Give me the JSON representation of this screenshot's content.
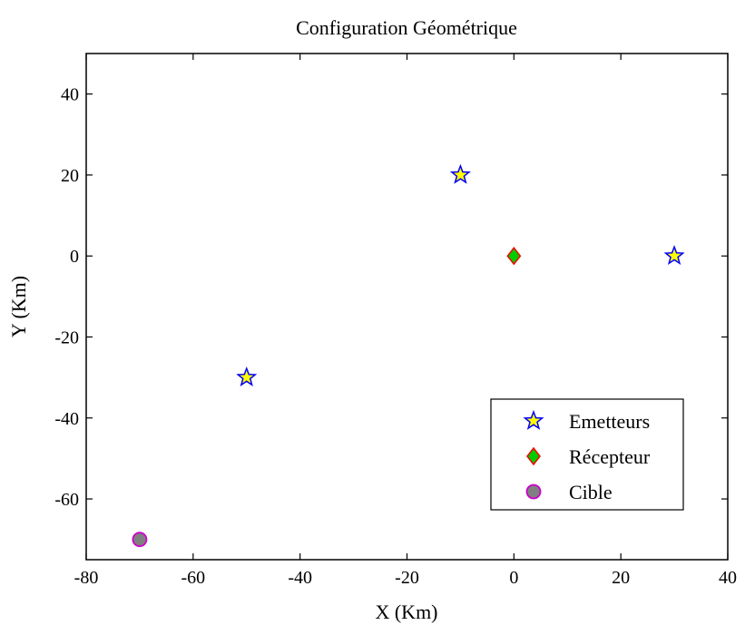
{
  "chart_data": {
    "type": "scatter",
    "title": "Configuration Géométrique",
    "xlabel": "X (Km)",
    "ylabel": "Y (Km)",
    "xlim": [
      -80,
      40
    ],
    "ylim": [
      -75,
      50
    ],
    "xticks": [
      -80,
      -60,
      -40,
      -20,
      0,
      20,
      40
    ],
    "yticks": [
      -60,
      -40,
      -20,
      0,
      20,
      40
    ],
    "grid": false,
    "legend_position": "bottom-right",
    "series": [
      {
        "name": "Emetteurs",
        "marker": "star",
        "color": "#0000ff",
        "fill": "#ffff00",
        "points": [
          [
            -50,
            -30
          ],
          [
            -10,
            20
          ],
          [
            30,
            0
          ]
        ]
      },
      {
        "name": "Récepteur",
        "marker": "diamond",
        "color": "#ff0000",
        "fill": "#00cc00",
        "points": [
          [
            0,
            0
          ]
        ]
      },
      {
        "name": "Cible",
        "marker": "circle",
        "color": "#cc00cc",
        "fill": "#808080",
        "points": [
          [
            -70,
            -70
          ]
        ]
      }
    ]
  }
}
